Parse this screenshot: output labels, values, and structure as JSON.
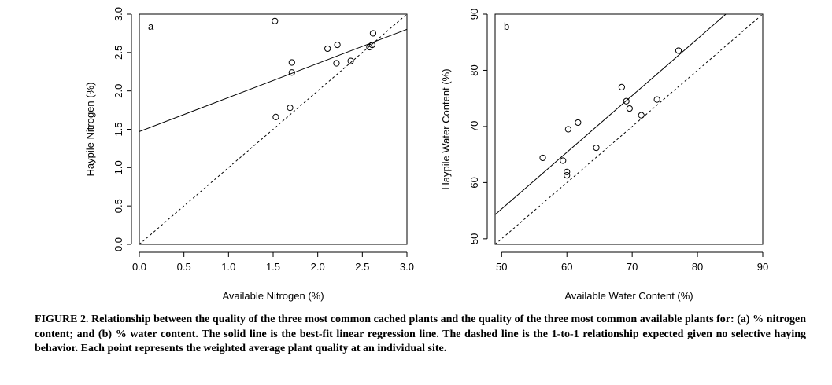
{
  "chart_data": [
    {
      "type": "scatter",
      "panel_label": "a",
      "xlabel": "Available Nitrogen (%)",
      "ylabel": "Haypile Nitrogen (%)",
      "xlim": [
        0,
        3.0
      ],
      "ylim": [
        0,
        3.0
      ],
      "xticks": [
        0.0,
        0.5,
        1.0,
        1.5,
        2.0,
        2.5,
        3.0
      ],
      "xtick_labels": [
        "0.0",
        "0.5",
        "1.0",
        "1.5",
        "2.0",
        "2.5",
        "3.0"
      ],
      "yticks": [
        0.0,
        0.5,
        1.0,
        1.5,
        2.0,
        2.5,
        3.0
      ],
      "ytick_labels": [
        "0.0",
        "0.5",
        "1.0",
        "1.5",
        "2.0",
        "2.5",
        "3.0"
      ],
      "points": [
        {
          "x": 1.52,
          "y": 2.91
        },
        {
          "x": 1.71,
          "y": 2.37
        },
        {
          "x": 1.71,
          "y": 2.24
        },
        {
          "x": 1.53,
          "y": 1.66
        },
        {
          "x": 1.69,
          "y": 1.78
        },
        {
          "x": 2.11,
          "y": 2.55
        },
        {
          "x": 2.22,
          "y": 2.6
        },
        {
          "x": 2.21,
          "y": 2.36
        },
        {
          "x": 2.37,
          "y": 2.39
        },
        {
          "x": 2.58,
          "y": 2.57
        },
        {
          "x": 2.61,
          "y": 2.6
        },
        {
          "x": 2.62,
          "y": 2.75
        }
      ],
      "regression": {
        "intercept": 1.47,
        "slope": 0.444
      },
      "one_to_one": true,
      "grid": false
    },
    {
      "type": "scatter",
      "panel_label": "b",
      "xlabel": "Available Water Content (%)",
      "ylabel": "Haypile Water Content (%)",
      "xlim": [
        49,
        90
      ],
      "ylim": [
        49,
        90
      ],
      "xticks": [
        50,
        60,
        70,
        80,
        90
      ],
      "xtick_labels": [
        "50",
        "60",
        "70",
        "80",
        "90"
      ],
      "yticks": [
        50,
        60,
        70,
        80,
        90
      ],
      "ytick_labels": [
        "50",
        "60",
        "70",
        "80",
        "90"
      ],
      "points": [
        {
          "x": 56.3,
          "y": 64.4
        },
        {
          "x": 59.4,
          "y": 63.9
        },
        {
          "x": 60.0,
          "y": 61.9
        },
        {
          "x": 60.0,
          "y": 61.3
        },
        {
          "x": 60.2,
          "y": 69.5
        },
        {
          "x": 61.7,
          "y": 70.7
        },
        {
          "x": 64.5,
          "y": 66.2
        },
        {
          "x": 68.4,
          "y": 77.0
        },
        {
          "x": 69.1,
          "y": 74.5
        },
        {
          "x": 69.6,
          "y": 73.2
        },
        {
          "x": 71.4,
          "y": 72.0
        },
        {
          "x": 73.8,
          "y": 74.8
        },
        {
          "x": 77.1,
          "y": 83.5
        }
      ],
      "regression": {
        "intercept": 4.8,
        "slope": 1.01
      },
      "one_to_one": true,
      "grid": false
    }
  ],
  "caption": "FIGURE 2. Relationship between the quality of the three most common cached plants and the quality of the three most common available plants for: (a) % nitrogen content; and (b) % water content. The solid line is the best-fit linear regression line. The dashed line is the 1-to-1 relationship expected given no selective haying behavior. Each point represents the weighted average plant quality at an individual site."
}
